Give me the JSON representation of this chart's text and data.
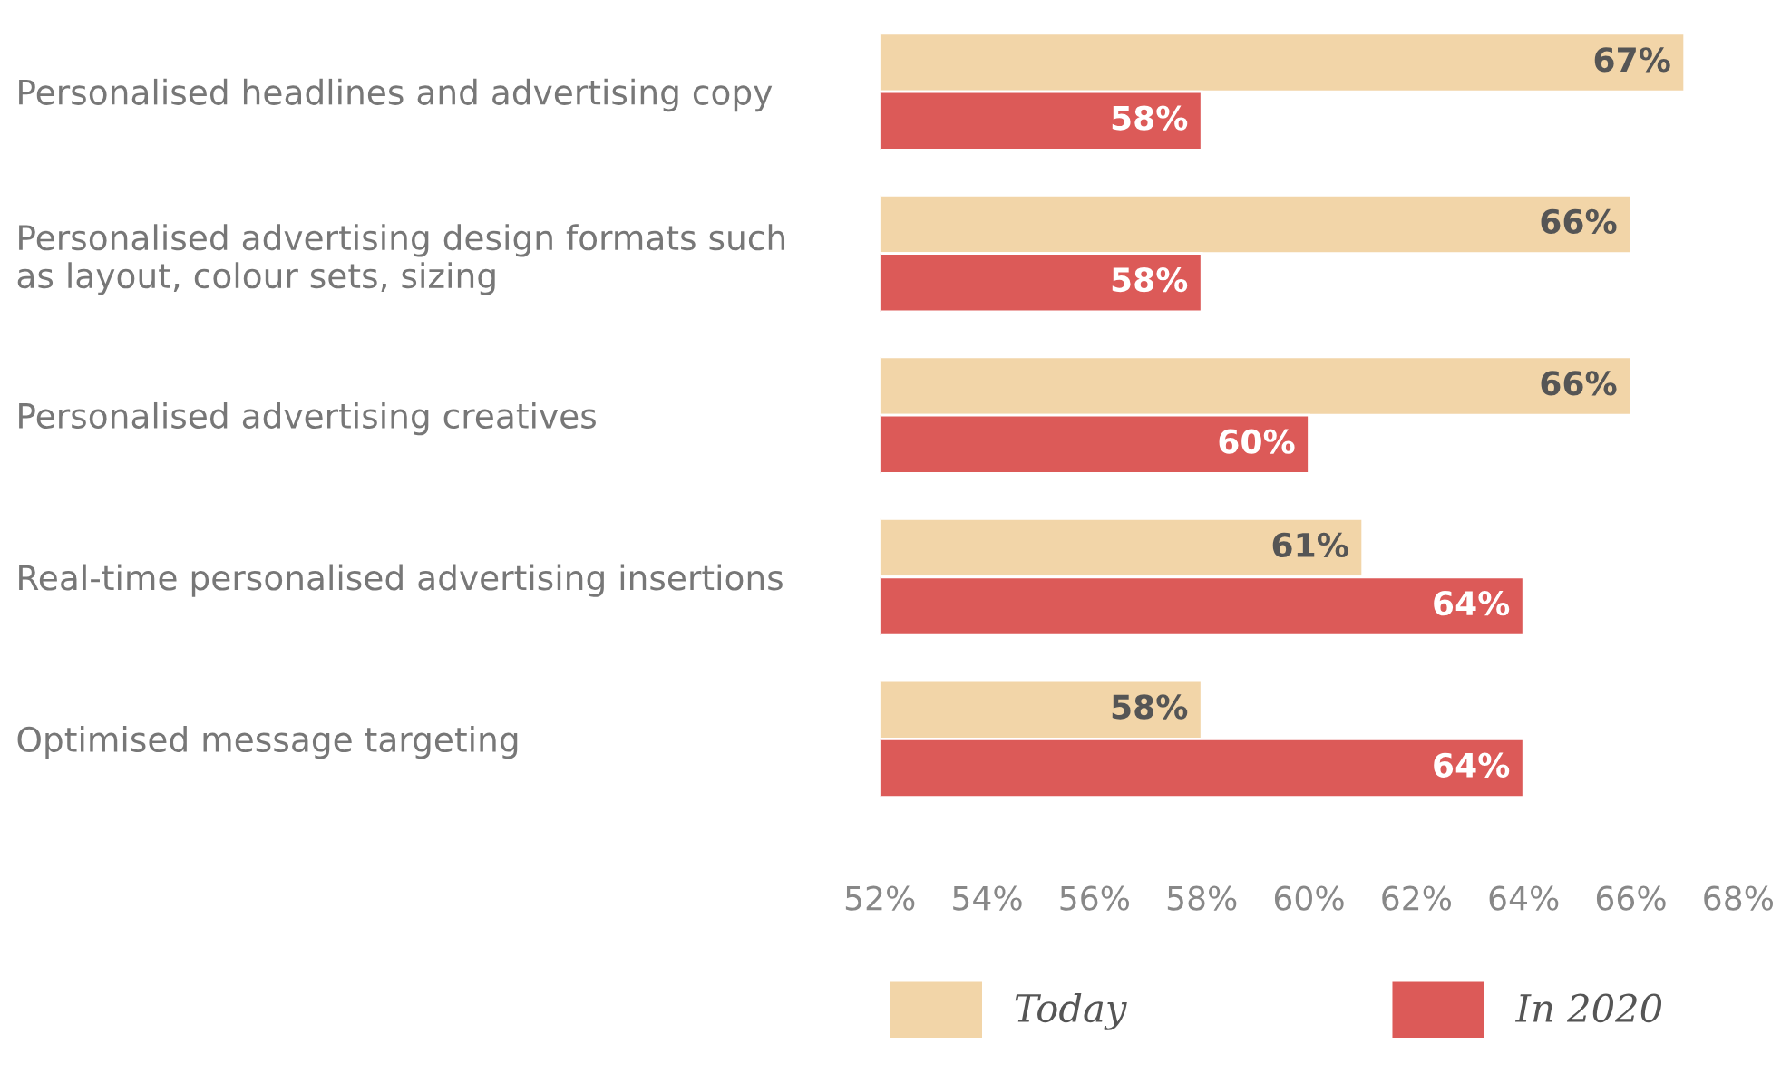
{
  "chart_data": {
    "type": "bar",
    "orientation": "horizontal",
    "categories": [
      "Personalised headlines and advertising copy",
      "Personalised advertising design formats such\nas layout, colour sets, sizing",
      "Personalised advertising creatives",
      "Real-time personalised advertising insertions",
      "Optimised message targeting"
    ],
    "series": [
      {
        "name": "Today",
        "color": "#f2d5a8",
        "values": [
          67,
          66,
          66,
          61,
          58
        ],
        "value_labels": [
          "67%",
          "66%",
          "66%",
          "61%",
          "58%"
        ]
      },
      {
        "name": "In 2020",
        "color": "#dc5a58",
        "values": [
          58,
          58,
          60,
          64,
          64
        ],
        "value_labels": [
          "58%",
          "58%",
          "60%",
          "64%",
          "64%"
        ]
      }
    ],
    "xlim": [
      52,
      68
    ],
    "xticks": [
      {
        "value": 52,
        "label": "52%"
      },
      {
        "value": 54,
        "label": "54%"
      },
      {
        "value": 56,
        "label": "56%"
      },
      {
        "value": 58,
        "label": "58%"
      },
      {
        "value": 60,
        "label": "60%"
      },
      {
        "value": 62,
        "label": "62%"
      },
      {
        "value": 64,
        "label": "64%"
      },
      {
        "value": 66,
        "label": "66%"
      },
      {
        "value": 68,
        "label": "68%"
      }
    ],
    "legend": "bottom",
    "grid": false
  }
}
